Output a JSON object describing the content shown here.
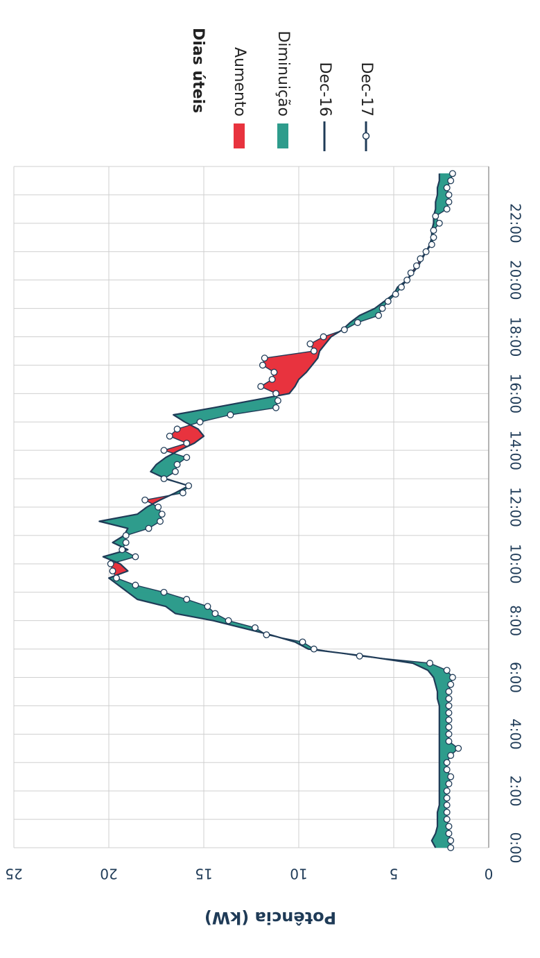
{
  "chart_data": {
    "type": "area",
    "title": "",
    "ylabel": "Potência (kW)",
    "xlabel": "",
    "ylim": [
      0,
      25
    ],
    "y_ticks": [
      "0",
      "5",
      "10",
      "15",
      "20",
      "25"
    ],
    "x_ticks": [
      "0:00",
      "2:00",
      "4:00",
      "6:00",
      "8:00",
      "10:00",
      "12:00",
      "14:00",
      "16:00",
      "18:00",
      "20:00",
      "22:00"
    ],
    "grid": true,
    "legend_position": "top",
    "legend_title": "Dias úteis",
    "legend": [
      {
        "label": "Aumento",
        "kind": "fill",
        "color": "#e8333e"
      },
      {
        "label": "Diminuição",
        "kind": "fill",
        "color": "#2e9c8c"
      },
      {
        "label": "Dec-16",
        "kind": "line",
        "color": "#1f3b57"
      },
      {
        "label": "Dec-17",
        "kind": "line-marker",
        "color": "#1f3b57"
      }
    ],
    "colors": {
      "increase": "#e8333e",
      "decrease": "#2e9c8c",
      "line": "#1f3b57",
      "grid": "#cfcfcf"
    },
    "x_hours": [
      0,
      0.25,
      0.5,
      0.75,
      1,
      1.25,
      1.5,
      1.75,
      2,
      2.25,
      2.5,
      2.75,
      3,
      3.25,
      3.5,
      3.75,
      4,
      4.25,
      4.5,
      4.75,
      5,
      5.25,
      5.5,
      5.75,
      6,
      6.25,
      6.5,
      6.75,
      7,
      7.25,
      7.5,
      7.75,
      8,
      8.25,
      8.5,
      8.75,
      9,
      9.25,
      9.5,
      9.75,
      10,
      10.25,
      10.5,
      10.75,
      11,
      11.25,
      11.5,
      11.75,
      12,
      12.25,
      12.5,
      12.75,
      13,
      13.25,
      13.5,
      13.75,
      14,
      14.25,
      14.5,
      14.75,
      15,
      15.25,
      15.5,
      15.75,
      16,
      16.25,
      16.5,
      16.75,
      17,
      17.25,
      17.5,
      17.75,
      18,
      18.25,
      18.5,
      18.75,
      19,
      19.25,
      19.5,
      19.75,
      20,
      20.25,
      20.5,
      20.75,
      21,
      21.25,
      21.5,
      21.75,
      22,
      22.25,
      22.5,
      22.75,
      23,
      23.25,
      23.5,
      23.75
    ],
    "series": [
      {
        "name": "Dec-16",
        "values": [
          2.8,
          3.0,
          2.8,
          2.7,
          2.7,
          2.7,
          2.6,
          2.6,
          2.6,
          2.6,
          2.6,
          2.6,
          2.6,
          2.6,
          2.6,
          2.6,
          2.6,
          2.6,
          2.6,
          2.6,
          2.6,
          2.7,
          2.7,
          2.8,
          2.9,
          3.2,
          4.0,
          6.5,
          9.5,
          10.2,
          11.5,
          13.0,
          14.5,
          16.5,
          17.0,
          18.5,
          19.0,
          19.5,
          20.0,
          19.0,
          19.4,
          20.3,
          19.0,
          19.8,
          19.2,
          19.0,
          20.5,
          18.5,
          18.0,
          17.3,
          16.5,
          15.8,
          17.0,
          17.8,
          17.5,
          17.0,
          16.3,
          15.5,
          15.0,
          15.3,
          16.0,
          16.6,
          14.5,
          12.5,
          10.5,
          10.2,
          10.0,
          9.6,
          9.3,
          9.0,
          8.9,
          8.6,
          8.3,
          7.7,
          7.3,
          6.8,
          6.0,
          5.5,
          5.0,
          4.8,
          4.3,
          4.0,
          3.7,
          3.5,
          3.3,
          3.1,
          3.0,
          3.0,
          2.9,
          2.9,
          2.8,
          2.8,
          2.7,
          2.7,
          2.6,
          2.6
        ]
      },
      {
        "name": "Dec-17",
        "values": [
          2.0,
          2.0,
          2.1,
          2.1,
          2.2,
          2.2,
          2.2,
          2.2,
          2.2,
          2.1,
          2.0,
          2.2,
          2.2,
          2.0,
          1.6,
          2.1,
          2.1,
          2.1,
          2.1,
          2.1,
          2.1,
          2.1,
          2.1,
          2.0,
          1.9,
          2.2,
          3.1,
          6.8,
          9.2,
          9.8,
          11.7,
          12.3,
          13.7,
          14.4,
          14.8,
          15.9,
          17.1,
          18.6,
          19.6,
          19.8,
          19.9,
          18.6,
          19.3,
          19.1,
          19.1,
          17.9,
          17.3,
          17.2,
          17.4,
          18.1,
          16.1,
          15.8,
          17.1,
          16.5,
          16.4,
          15.9,
          17.1,
          15.9,
          16.8,
          16.4,
          15.2,
          13.6,
          11.2,
          11.1,
          11.2,
          12.0,
          11.4,
          11.3,
          11.9,
          11.8,
          9.2,
          9.4,
          8.7,
          7.6,
          6.9,
          5.8,
          5.6,
          5.3,
          4.9,
          4.6,
          4.3,
          4.1,
          3.8,
          3.6,
          3.3,
          3.0,
          2.9,
          2.9,
          2.6,
          2.8,
          2.2,
          2.1,
          2.1,
          2.2,
          2.0,
          1.9
        ]
      }
    ]
  }
}
